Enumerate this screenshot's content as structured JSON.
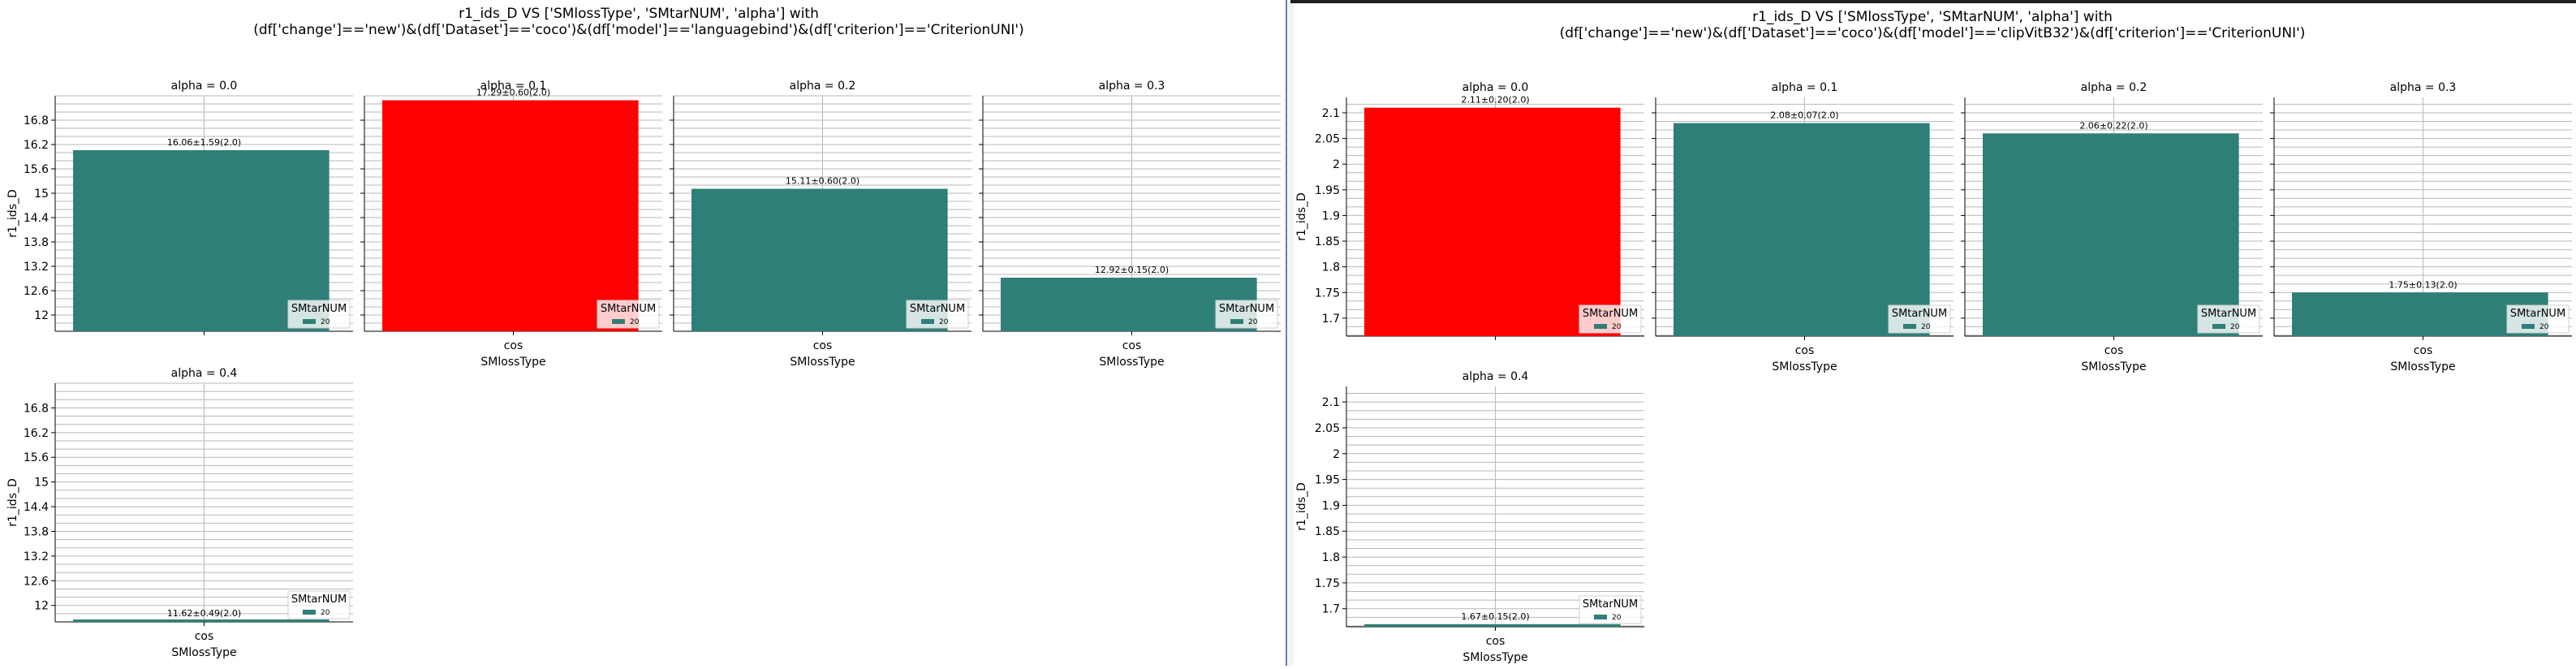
{
  "figures": [
    {
      "title_line1": "r1_ids_D VS ['SMlossType', 'SMtarNUM', 'alpha'] with",
      "title_line2": "(df['change']=='new')&(df['Dataset']=='coco')&(df['model']=='languagebind')&(df['criterion']=='CriterionUNI')",
      "ylabel": "r1_ids_D",
      "xlabel": "SMlossType",
      "legend_title": "SMtarNUM",
      "legend_entry": "20",
      "y_ticks": [
        "12.0",
        "12.6",
        "13.2",
        "13.8",
        "14.4",
        "15.0",
        "15.6",
        "16.2",
        "16.8"
      ]
    },
    {
      "title_line1": "r1_ids_D VS ['SMlossType', 'SMtarNUM', 'alpha'] with",
      "title_line2": "(df['change']=='new')&(df['Dataset']=='coco')&(df['model']=='clipVitB32')&(df['criterion']=='CriterionUNI')",
      "ylabel": "r1_ids_D",
      "xlabel": "SMlossType",
      "legend_title": "SMtarNUM",
      "legend_entry": "20",
      "y_ticks": [
        "1.70",
        "1.75",
        "1.80",
        "1.85",
        "1.90",
        "1.95",
        "2.00",
        "2.05",
        "2.10"
      ]
    }
  ],
  "chart_data": [
    {
      "type": "bar",
      "ylim": [
        11.6,
        17.4
      ],
      "y_ticks": [
        12.0,
        12.6,
        13.2,
        13.8,
        14.4,
        15.0,
        15.6,
        16.2,
        16.8
      ],
      "category": "cos",
      "series_name": "20",
      "colors": {
        "bar": "#2e7f78",
        "highlight": "#ff0000"
      },
      "panels": [
        {
          "title": "alpha = 0.0",
          "value": 16.06,
          "label": "16.06±1.59(2.0)",
          "highlight": false
        },
        {
          "title": "alpha = 0.1",
          "value": 17.29,
          "label": "17.29±0.60(2.0)",
          "highlight": true
        },
        {
          "title": "alpha = 0.2",
          "value": 15.11,
          "label": "15.11±0.60(2.0)",
          "highlight": false
        },
        {
          "title": "alpha = 0.3",
          "value": 12.92,
          "label": "12.92±0.15(2.0)",
          "highlight": false
        },
        {
          "title": "alpha = 0.4",
          "value": 11.62,
          "label": "11.62±0.49(2.0)",
          "highlight": false
        }
      ]
    },
    {
      "type": "bar",
      "ylim": [
        1.665,
        2.13
      ],
      "y_ticks": [
        1.7,
        1.75,
        1.8,
        1.85,
        1.9,
        1.95,
        2.0,
        2.05,
        2.1
      ],
      "category": "cos",
      "series_name": "20",
      "colors": {
        "bar": "#2e7f78",
        "highlight": "#ff0000"
      },
      "panels": [
        {
          "title": "alpha = 0.0",
          "value": 2.11,
          "label": "2.11±0.20(2.0)",
          "highlight": true
        },
        {
          "title": "alpha = 0.1",
          "value": 2.08,
          "label": "2.08±0.07(2.0)",
          "highlight": false
        },
        {
          "title": "alpha = 0.2",
          "value": 2.06,
          "label": "2.06±0.22(2.0)",
          "highlight": false
        },
        {
          "title": "alpha = 0.3",
          "value": 1.75,
          "label": "1.75±0.13(2.0)",
          "highlight": false
        },
        {
          "title": "alpha = 0.4",
          "value": 1.67,
          "label": "1.67±0.15(2.0)",
          "highlight": false
        }
      ]
    }
  ]
}
